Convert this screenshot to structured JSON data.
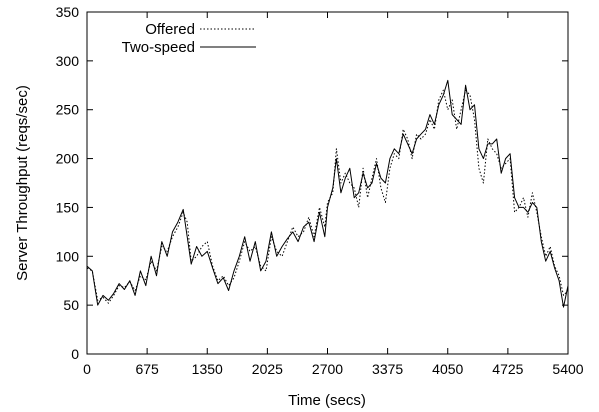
{
  "chart_data": {
    "type": "line",
    "xlabel": "Time (secs)",
    "ylabel": "Server Throughput (reqs/sec)",
    "xlim": [
      0,
      5400
    ],
    "ylim": [
      0,
      350
    ],
    "xticks": [
      0,
      675,
      1350,
      2025,
      2700,
      3375,
      4050,
      4725,
      5400
    ],
    "yticks": [
      0,
      50,
      100,
      150,
      200,
      250,
      300,
      350
    ],
    "grid": false,
    "legend_position": "top-left",
    "series": [
      {
        "name": "Offered",
        "style": "dotted",
        "x": [
          0,
          60,
          120,
          180,
          240,
          300,
          360,
          420,
          480,
          540,
          600,
          660,
          720,
          780,
          840,
          900,
          960,
          1020,
          1080,
          1125,
          1170,
          1230,
          1290,
          1350,
          1410,
          1470,
          1530,
          1590,
          1650,
          1710,
          1770,
          1830,
          1890,
          1950,
          2010,
          2070,
          2130,
          2190,
          2250,
          2310,
          2370,
          2430,
          2490,
          2550,
          2610,
          2670,
          2700,
          2760,
          2800,
          2850,
          2900,
          2950,
          3000,
          3050,
          3100,
          3150,
          3200,
          3250,
          3300,
          3350,
          3400,
          3450,
          3500,
          3550,
          3600,
          3650,
          3700,
          3750,
          3800,
          3850,
          3900,
          3950,
          4000,
          4050,
          4100,
          4150,
          4200,
          4250,
          4300,
          4350,
          4400,
          4450,
          4500,
          4550,
          4600,
          4650,
          4700,
          4750,
          4800,
          4850,
          4900,
          4950,
          5000,
          5050,
          5100,
          5150,
          5200,
          5250,
          5300,
          5350,
          5400
        ],
        "values": [
          88,
          85,
          55,
          58,
          52,
          60,
          70,
          68,
          74,
          65,
          80,
          76,
          95,
          85,
          110,
          105,
          120,
          130,
          145,
          135,
          95,
          100,
          110,
          115,
          90,
          75,
          80,
          70,
          78,
          95,
          115,
          105,
          110,
          90,
          85,
          120,
          105,
          100,
          115,
          130,
          120,
          125,
          140,
          120,
          150,
          130,
          155,
          165,
          210,
          175,
          185,
          175,
          170,
          150,
          190,
          160,
          180,
          200,
          170,
          155,
          190,
          205,
          200,
          230,
          220,
          200,
          225,
          220,
          225,
          240,
          230,
          260,
          270,
          250,
          260,
          230,
          250,
          270,
          265,
          240,
          190,
          175,
          220,
          210,
          205,
          190,
          195,
          200,
          145,
          150,
          160,
          140,
          165,
          145,
          120,
          100,
          110,
          90,
          80,
          60,
          65
        ]
      },
      {
        "name": "Two-speed",
        "style": "solid",
        "x": [
          0,
          60,
          120,
          180,
          240,
          300,
          360,
          420,
          480,
          540,
          600,
          660,
          720,
          780,
          840,
          900,
          960,
          1020,
          1080,
          1125,
          1170,
          1230,
          1290,
          1350,
          1410,
          1470,
          1530,
          1590,
          1650,
          1710,
          1770,
          1830,
          1890,
          1950,
          2010,
          2070,
          2130,
          2190,
          2250,
          2310,
          2370,
          2430,
          2490,
          2550,
          2610,
          2670,
          2700,
          2760,
          2800,
          2850,
          2900,
          2950,
          3000,
          3050,
          3100,
          3150,
          3200,
          3250,
          3300,
          3350,
          3400,
          3450,
          3500,
          3550,
          3600,
          3650,
          3700,
          3750,
          3800,
          3850,
          3900,
          3950,
          4000,
          4050,
          4100,
          4150,
          4200,
          4250,
          4300,
          4350,
          4400,
          4450,
          4500,
          4550,
          4600,
          4650,
          4700,
          4750,
          4800,
          4850,
          4900,
          4950,
          5000,
          5050,
          5100,
          5150,
          5200,
          5250,
          5300,
          5350,
          5400
        ],
        "values": [
          90,
          85,
          50,
          60,
          55,
          62,
          72,
          66,
          75,
          60,
          85,
          70,
          100,
          80,
          115,
          100,
          125,
          135,
          148,
          120,
          92,
          110,
          100,
          105,
          88,
          72,
          78,
          65,
          85,
          100,
          120,
          95,
          115,
          85,
          95,
          125,
          100,
          110,
          118,
          125,
          115,
          130,
          135,
          115,
          145,
          120,
          150,
          170,
          200,
          165,
          180,
          190,
          160,
          165,
          185,
          170,
          175,
          195,
          180,
          175,
          200,
          210,
          205,
          225,
          215,
          205,
          220,
          225,
          230,
          245,
          235,
          255,
          265,
          280,
          245,
          240,
          235,
          275,
          250,
          255,
          210,
          200,
          215,
          215,
          220,
          185,
          200,
          205,
          160,
          150,
          150,
          145,
          155,
          150,
          115,
          95,
          105,
          88,
          75,
          48,
          70
        ]
      }
    ]
  }
}
